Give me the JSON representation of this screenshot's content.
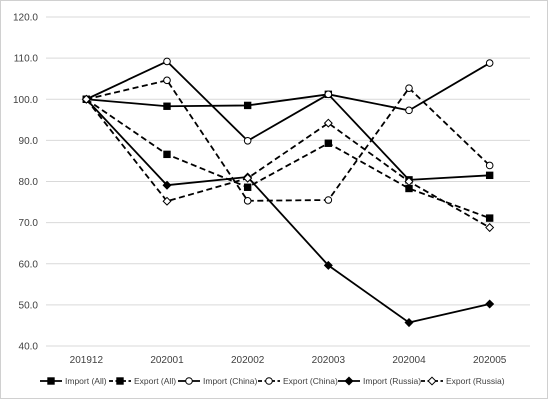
{
  "chart_data": {
    "type": "line",
    "title": "",
    "xlabel": "",
    "ylabel": "",
    "categories": [
      "201912",
      "202001",
      "202002",
      "202003",
      "202004",
      "202005"
    ],
    "ylim": [
      40,
      120
    ],
    "yticks": [
      "40.0",
      "50.0",
      "60.0",
      "70.0",
      "80.0",
      "90.0",
      "100.0",
      "110.0",
      "120.0"
    ],
    "grid": true,
    "legend_position": "bottom",
    "series": [
      {
        "name": "Import (All)",
        "values": [
          100,
          98.3,
          98.5,
          101.2,
          80.4,
          81.5
        ],
        "dash": false,
        "marker": "square-filled"
      },
      {
        "name": "Export (All)",
        "values": [
          100,
          86.6,
          78.6,
          89.3,
          78.3,
          71.1
        ],
        "dash": true,
        "marker": "square-filled"
      },
      {
        "name": "Import (China)",
        "values": [
          100,
          109.2,
          89.9,
          101.2,
          97.3,
          108.8
        ],
        "dash": false,
        "marker": "circle-open"
      },
      {
        "name": "Export (China)",
        "values": [
          100,
          104.6,
          75.3,
          75.5,
          102.7,
          83.9
        ],
        "dash": true,
        "marker": "circle-open"
      },
      {
        "name": "Import (Russia)",
        "values": [
          100,
          79.1,
          81.1,
          59.6,
          45.7,
          50.2
        ],
        "dash": false,
        "marker": "diamond-filled"
      },
      {
        "name": "Export (Russia)",
        "values": [
          100,
          75.2,
          80.8,
          94.2,
          80.0,
          68.8
        ],
        "dash": true,
        "marker": "diamond-open"
      }
    ]
  }
}
